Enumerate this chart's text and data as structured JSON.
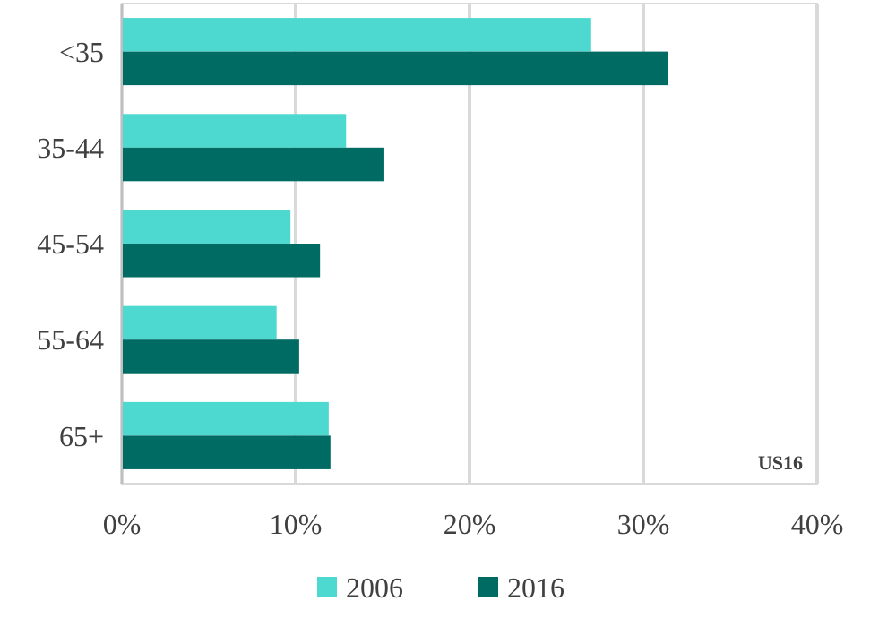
{
  "chart_data": {
    "type": "bar",
    "orientation": "horizontal",
    "categories": [
      "<35",
      "35-44",
      "45-54",
      "55-64",
      "65+"
    ],
    "series": [
      {
        "name": "2006",
        "color": "#4dd9cf",
        "values": [
          27.0,
          12.9,
          9.7,
          8.9,
          11.9
        ]
      },
      {
        "name": "2016",
        "color": "#006b63",
        "values": [
          31.4,
          15.1,
          11.4,
          10.2,
          12.0
        ]
      }
    ],
    "xlim": [
      0,
      40
    ],
    "xticks": [
      {
        "value": 0,
        "label": "0%"
      },
      {
        "value": 10,
        "label": "10%"
      },
      {
        "value": 20,
        "label": "20%"
      },
      {
        "value": 30,
        "label": "30%"
      },
      {
        "value": 40,
        "label": "40%"
      }
    ],
    "grid": "x",
    "legend": "bottom",
    "annotations": [
      "US16"
    ]
  }
}
